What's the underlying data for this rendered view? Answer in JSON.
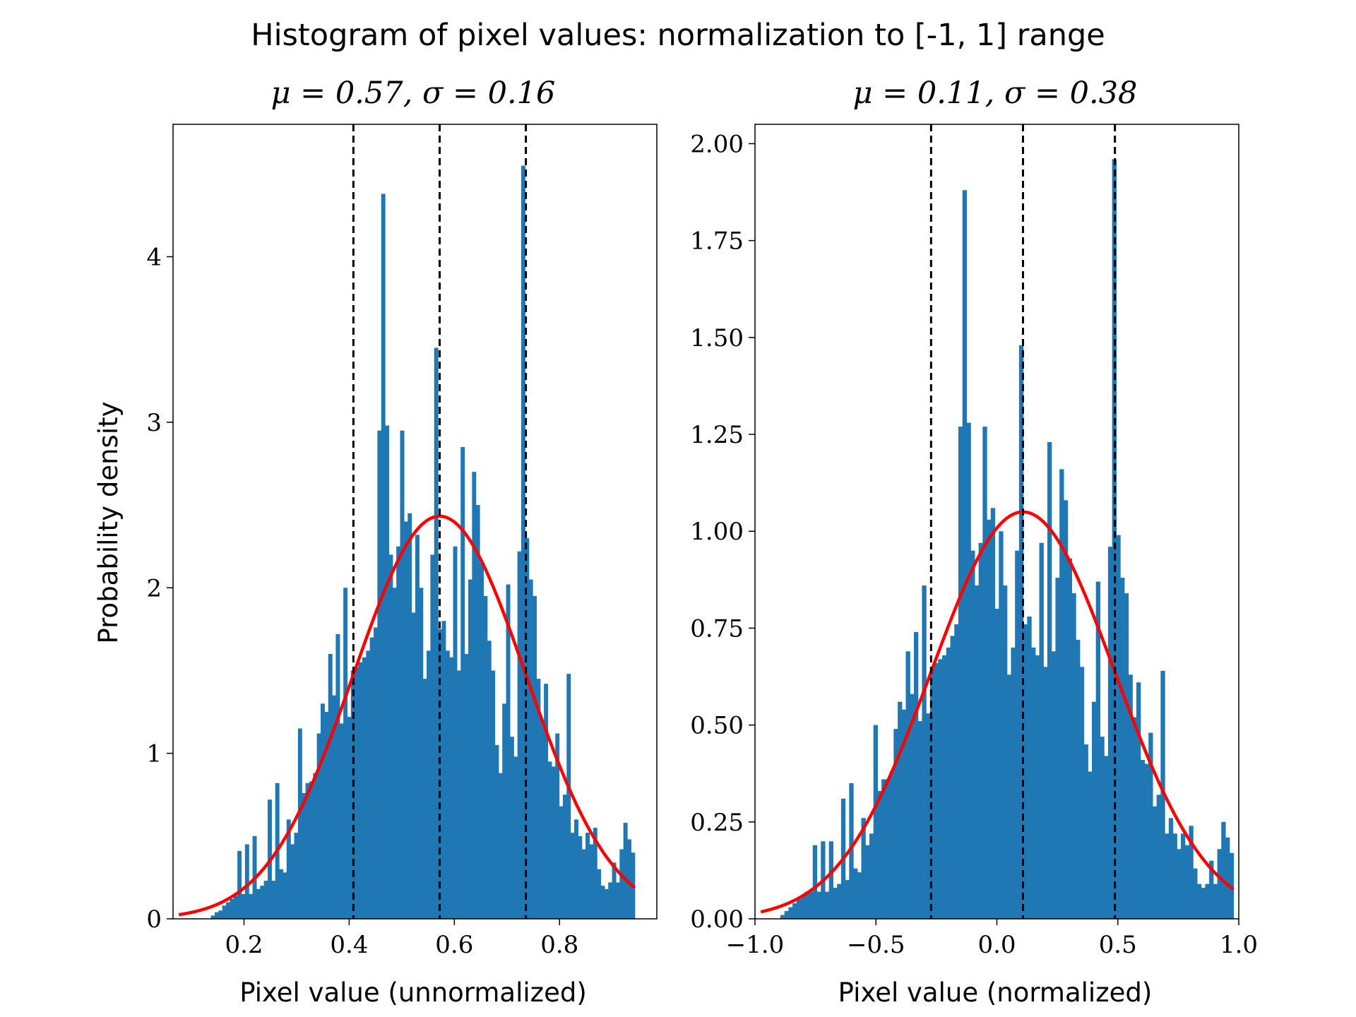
{
  "figure": {
    "title": "Histogram of pixel values: normalization to [-1, 1] range",
    "colors": {
      "bars": "#1f77b4",
      "fit_curve": "#ff0000",
      "mean_sd_lines": "#000000",
      "background": "#ffffff"
    }
  },
  "chart_data": [
    {
      "type": "bar",
      "subtype": "histogram",
      "title": "μ = 0.57, σ = 0.16",
      "xlabel": "Pixel value (unnormalized)",
      "ylabel": "Probability density",
      "xlim": [
        0.065,
        0.985
      ],
      "ylim": [
        0,
        4.8
      ],
      "xticks": [
        0.2,
        0.4,
        0.6,
        0.8
      ],
      "xtick_labels": [
        "0.2",
        "0.4",
        "0.6",
        "0.8"
      ],
      "yticks": [
        0,
        1,
        2,
        3,
        4
      ],
      "ytick_labels": [
        "0",
        "1",
        "2",
        "3",
        "4"
      ],
      "grid": false,
      "bin_edges_range": [
        0.137,
        0.943
      ],
      "values": [
        0.02,
        0.04,
        0.05,
        0.08,
        0.1,
        0.12,
        0.14,
        0.41,
        0.15,
        0.45,
        0.15,
        0.5,
        0.18,
        0.2,
        0.23,
        0.72,
        0.23,
        0.82,
        0.3,
        0.28,
        0.6,
        0.45,
        0.52,
        1.15,
        0.76,
        0.82,
        0.83,
        0.88,
        1.12,
        1.3,
        1.25,
        1.6,
        1.35,
        1.72,
        1.18,
        2.0,
        1.22,
        1.5,
        1.52,
        1.55,
        1.58,
        1.62,
        1.7,
        1.76,
        2.95,
        4.38,
        2.98,
        2.2,
        2.0,
        2.25,
        2.95,
        2.4,
        2.45,
        1.85,
        2.32,
        2.0,
        1.45,
        1.62,
        2.2,
        3.45,
        1.75,
        1.8,
        1.62,
        1.58,
        2.25,
        1.5,
        2.85,
        1.6,
        2.05,
        2.7,
        2.5,
        2.15,
        1.95,
        1.68,
        1.5,
        1.05,
        0.88,
        1.3,
        2.02,
        1.1,
        0.98,
        2.22,
        4.55,
        2.3,
        2.05,
        1.95,
        1.45,
        1.2,
        1.42,
        0.95,
        0.92,
        1.12,
        0.68,
        0.75,
        1.48,
        0.52,
        0.6,
        0.5,
        0.42,
        0.52,
        0.45,
        0.55,
        0.3,
        0.2,
        0.18,
        0.22,
        0.34,
        0.22,
        0.42,
        0.58,
        0.48,
        0.4
      ],
      "fit_curve": {
        "distribution": "normal",
        "mean": 0.572,
        "sd": 0.164
      },
      "vlines": [
        0.408,
        0.572,
        0.736
      ]
    },
    {
      "type": "bar",
      "subtype": "histogram",
      "title": "μ = 0.11, σ = 0.38",
      "xlabel": "Pixel value (normalized)",
      "ylabel": "",
      "xlim": [
        -1.0,
        1.0
      ],
      "ylim": [
        0,
        2.05
      ],
      "xticks": [
        -1.0,
        -0.5,
        0.0,
        0.5,
        1.0
      ],
      "xtick_labels": [
        "−1.0",
        "−0.5",
        "0.0",
        "0.5",
        "1.0"
      ],
      "yticks": [
        0,
        0.25,
        0.5,
        0.75,
        1.0,
        1.25,
        1.5,
        1.75,
        2.0
      ],
      "ytick_labels": [
        "0.00",
        "0.25",
        "0.50",
        "0.75",
        "1.00",
        "1.25",
        "1.50",
        "1.75",
        "2.00"
      ],
      "grid": false,
      "bin_edges_range": [
        -0.895,
        0.978
      ],
      "values": [
        0.01,
        0.02,
        0.03,
        0.04,
        0.05,
        0.06,
        0.07,
        0.07,
        0.19,
        0.07,
        0.2,
        0.07,
        0.2,
        0.08,
        0.09,
        0.31,
        0.1,
        0.35,
        0.13,
        0.12,
        0.26,
        0.19,
        0.22,
        0.5,
        0.33,
        0.36,
        0.36,
        0.38,
        0.49,
        0.56,
        0.54,
        0.69,
        0.58,
        0.74,
        0.51,
        0.86,
        0.53,
        0.65,
        0.66,
        0.67,
        0.68,
        0.7,
        0.73,
        0.76,
        1.27,
        1.88,
        1.28,
        0.95,
        0.86,
        0.97,
        1.27,
        1.03,
        1.06,
        0.8,
        1.0,
        0.86,
        0.63,
        0.7,
        0.95,
        1.48,
        0.76,
        0.78,
        0.7,
        0.68,
        0.97,
        0.65,
        1.23,
        0.69,
        0.88,
        1.16,
        1.08,
        0.93,
        0.84,
        0.72,
        0.65,
        0.45,
        0.38,
        0.56,
        0.87,
        0.47,
        0.42,
        0.96,
        1.96,
        0.99,
        0.88,
        0.84,
        0.63,
        0.52,
        0.61,
        0.41,
        0.4,
        0.48,
        0.29,
        0.32,
        0.64,
        0.22,
        0.26,
        0.22,
        0.18,
        0.22,
        0.19,
        0.24,
        0.13,
        0.09,
        0.08,
        0.09,
        0.15,
        0.09,
        0.18,
        0.25,
        0.21,
        0.17
      ],
      "fit_curve": {
        "distribution": "normal",
        "mean": 0.108,
        "sd": 0.38
      },
      "vlines": [
        -0.272,
        0.108,
        0.488
      ]
    }
  ]
}
